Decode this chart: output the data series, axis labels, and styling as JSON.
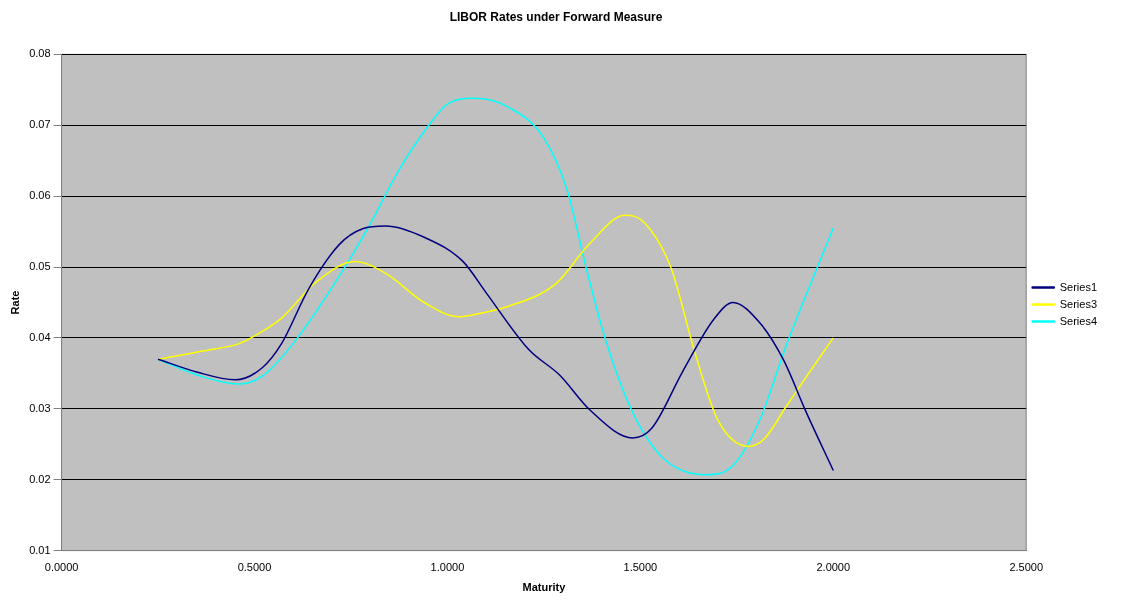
{
  "chart_data": {
    "type": "line",
    "title": "LIBOR Rates under Forward Measure",
    "xlabel": "Maturity",
    "ylabel": "Rate",
    "xlim": [
      0,
      2.5
    ],
    "xticks": [
      {
        "value": 0,
        "label": "0.0000"
      },
      {
        "value": 0.5,
        "label": "0.5000"
      },
      {
        "value": 1,
        "label": "1.0000"
      },
      {
        "value": 1.5,
        "label": "1.5000"
      },
      {
        "value": 2,
        "label": "2.0000"
      },
      {
        "value": 2.5,
        "label": "2.5000"
      }
    ],
    "ylim": [
      0.01,
      0.08
    ],
    "yticks": [
      0.01,
      0.02,
      0.03,
      0.04,
      0.05,
      0.06,
      0.07,
      0.08
    ],
    "grid": "y",
    "legend": "right",
    "marker": "none",
    "line_style": "solid",
    "series": [
      {
        "name": "Series1",
        "color": "#000080",
        "x": [
          0.25,
          0.35,
          0.45,
          0.52,
          0.57,
          0.64,
          0.72,
          0.78,
          0.84,
          0.94,
          1.04,
          1.1,
          1.21,
          1.29,
          1.37,
          1.48,
          1.53,
          1.61,
          1.69,
          1.74,
          1.81,
          1.87,
          1.93,
          2.0
        ],
        "values": [
          0.037,
          0.0352,
          0.0341,
          0.0358,
          0.0392,
          0.0469,
          0.0532,
          0.0554,
          0.0558,
          0.0542,
          0.0508,
          0.0464,
          0.0384,
          0.0348,
          0.0298,
          0.0259,
          0.0273,
          0.0353,
          0.0426,
          0.045,
          0.0421,
          0.037,
          0.0295,
          0.0213
        ]
      },
      {
        "name": "Series3",
        "color": "#ffff00",
        "x": [
          0.25,
          0.37,
          0.46,
          0.51,
          0.57,
          0.66,
          0.76,
          0.84,
          0.94,
          1.03,
          1.07,
          1.16,
          1.28,
          1.37,
          1.46,
          1.51,
          1.58,
          1.64,
          1.7,
          1.78,
          1.82,
          1.88,
          1.94,
          2.0
        ],
        "values": [
          0.037,
          0.0382,
          0.0392,
          0.0406,
          0.0428,
          0.0479,
          0.0508,
          0.0491,
          0.045,
          0.043,
          0.0433,
          0.0445,
          0.0476,
          0.0534,
          0.0573,
          0.0563,
          0.0498,
          0.0382,
          0.0285,
          0.0247,
          0.0257,
          0.0305,
          0.0353,
          0.04
        ]
      },
      {
        "name": "Series4",
        "color": "#00ffff",
        "x": [
          0.25,
          0.35,
          0.46,
          0.52,
          0.6,
          0.71,
          0.8,
          0.87,
          0.95,
          1.0,
          1.07,
          1.16,
          1.25,
          1.31,
          1.36,
          1.41,
          1.48,
          1.56,
          1.67,
          1.74,
          1.81,
          1.88,
          2.0
        ],
        "values": [
          0.037,
          0.0348,
          0.0335,
          0.0346,
          0.0392,
          0.0479,
          0.0561,
          0.0633,
          0.0699,
          0.073,
          0.0738,
          0.0725,
          0.0682,
          0.0609,
          0.0498,
          0.0397,
          0.0295,
          0.023,
          0.0207,
          0.022,
          0.0285,
          0.0392,
          0.0555
        ]
      }
    ]
  }
}
